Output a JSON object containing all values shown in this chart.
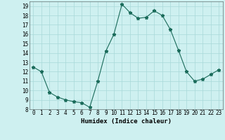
{
  "xlabel": "Humidex (Indice chaleur)",
  "x": [
    0,
    1,
    2,
    3,
    4,
    5,
    6,
    7,
    8,
    9,
    10,
    11,
    12,
    13,
    14,
    15,
    16,
    17,
    18,
    19,
    20,
    21,
    22,
    23
  ],
  "y_data": [
    12.5,
    12.0,
    9.8,
    9.3,
    9.0,
    8.8,
    8.7,
    8.2,
    11.0,
    14.2,
    16.0,
    19.2,
    18.3,
    17.7,
    17.8,
    18.5,
    18.0,
    16.5,
    14.3,
    12.0,
    11.0,
    11.2,
    11.7,
    12.2
  ],
  "ylim": [
    8,
    19.5
  ],
  "xlim": [
    -0.5,
    23.5
  ],
  "yticks": [
    8,
    9,
    10,
    11,
    12,
    13,
    14,
    15,
    16,
    17,
    18,
    19
  ],
  "xticks": [
    0,
    1,
    2,
    3,
    4,
    5,
    6,
    7,
    8,
    9,
    10,
    11,
    12,
    13,
    14,
    15,
    16,
    17,
    18,
    19,
    20,
    21,
    22,
    23
  ],
  "line_color": "#1a6b5a",
  "marker": "*",
  "marker_size": 3.5,
  "bg_color": "#cef0f0",
  "grid_color": "#a8d8d8",
  "label_fontsize": 6.5,
  "tick_fontsize": 5.5
}
